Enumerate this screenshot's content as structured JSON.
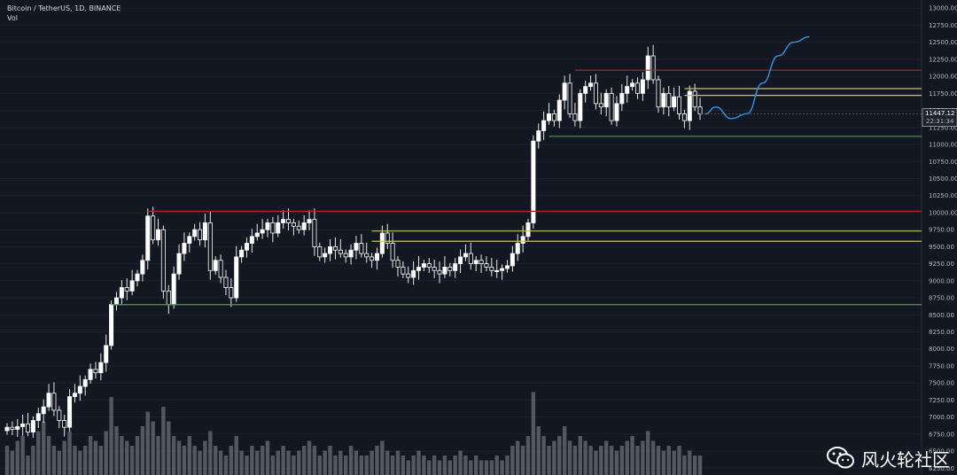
{
  "header": {
    "title": "Bitcoin / TetherUS, 1D, BINANCE",
    "sub": "Vol"
  },
  "price_tag": {
    "last_price": "11447.12",
    "countdown": "22:31:34"
  },
  "watermark": {
    "text": "风火轮社区",
    "icon": "wechat-icon"
  },
  "colors": {
    "background": "#131722",
    "candle_body": "#ffffff",
    "volume": "#6a6d78",
    "resistance": "#b2262a",
    "band": "#c9c26a",
    "support": "#33a852",
    "projection": "#2f8fd8",
    "grid": "#1e2230",
    "axis_text": "#b2b5be"
  },
  "chart_data": {
    "type": "candlestick",
    "title": "Bitcoin / TetherUS, 1D, BINANCE",
    "ylim": [
      6250,
      13000
    ],
    "y_ticks": [
      13000,
      12750,
      12500,
      12250,
      12000,
      11750,
      11500,
      11250,
      11000,
      10750,
      10500,
      10250,
      10000,
      9750,
      9500,
      9250,
      9000,
      8750,
      8500,
      8250,
      8000,
      7750,
      7500,
      7250,
      7000,
      6750,
      6500,
      6250
    ],
    "y_tick_labels": [
      "13000.00",
      "12750.00",
      "12500.00",
      "12250.00",
      "12000.00",
      "11750.00",
      "11500.00",
      "11250.00",
      "11000.00",
      "10750.00",
      "10500.00",
      "10250.00",
      "10000.00",
      "9750.00",
      "9500.00",
      "9250.00",
      "9000.00",
      "8750.00",
      "8500.00",
      "8250.00",
      "8000.00",
      "7750.00",
      "7500.00",
      "7250.00",
      "7000.00",
      "6750.00",
      "6500.00",
      "6250.00"
    ],
    "closes": [
      6850,
      6820,
      6860,
      6900,
      6780,
      6950,
      7050,
      7150,
      7350,
      7100,
      6950,
      6850,
      7300,
      7350,
      7450,
      7550,
      7700,
      7650,
      7800,
      8050,
      8650,
      8750,
      8900,
      8850,
      9000,
      9100,
      9300,
      9950,
      9600,
      9750,
      8850,
      8650,
      9100,
      9400,
      9550,
      9650,
      9750,
      9600,
      9850,
      9150,
      9300,
      9050,
      8900,
      8750,
      9350,
      9450,
      9550,
      9650,
      9700,
      9750,
      9850,
      9700,
      9850,
      9900,
      9850,
      9800,
      9750,
      9850,
      9900,
      9500,
      9350,
      9400,
      9500,
      9450,
      9400,
      9350,
      9450,
      9550,
      9400,
      9350,
      9300,
      9400,
      9700,
      9550,
      9300,
      9200,
      9100,
      9050,
      9150,
      9200,
      9250,
      9200,
      9150,
      9100,
      9200,
      9150,
      9250,
      9350,
      9400,
      9250,
      9300,
      9250,
      9200,
      9150,
      9150,
      9180,
      9220,
      9400,
      9550,
      9650,
      9850,
      11050,
      11200,
      11350,
      11450,
      11350,
      11650,
      11900,
      11450,
      11350,
      11750,
      11850,
      11900,
      11600,
      11550,
      11750,
      11350,
      11600,
      11750,
      11850,
      11900,
      11750,
      11950,
      12300,
      11950,
      11550,
      11750,
      11550,
      11700,
      11450,
      11350,
      11780,
      11550,
      11447
    ],
    "opens": [
      6800,
      6850,
      6820,
      6860,
      6900,
      6780,
      6950,
      7050,
      7150,
      7350,
      7100,
      6950,
      6850,
      7300,
      7350,
      7450,
      7550,
      7700,
      7650,
      7800,
      8050,
      8650,
      8750,
      8900,
      8850,
      9000,
      9100,
      9300,
      9950,
      9600,
      9750,
      8850,
      8650,
      9100,
      9400,
      9550,
      9650,
      9750,
      9600,
      9850,
      9150,
      9300,
      9050,
      8900,
      8750,
      9350,
      9450,
      9550,
      9650,
      9700,
      9750,
      9850,
      9700,
      9850,
      9900,
      9850,
      9800,
      9750,
      9850,
      9900,
      9500,
      9350,
      9400,
      9500,
      9450,
      9400,
      9350,
      9450,
      9550,
      9400,
      9350,
      9300,
      9400,
      9700,
      9550,
      9300,
      9200,
      9100,
      9050,
      9150,
      9200,
      9250,
      9200,
      9150,
      9100,
      9200,
      9150,
      9250,
      9350,
      9400,
      9250,
      9300,
      9250,
      9200,
      9150,
      9150,
      9180,
      9220,
      9400,
      9550,
      9650,
      9850,
      11050,
      11200,
      11350,
      11450,
      11350,
      11650,
      11900,
      11450,
      11350,
      11750,
      11850,
      11900,
      11600,
      11550,
      11750,
      11350,
      11600,
      11750,
      11850,
      11900,
      11750,
      11950,
      12300,
      11950,
      11550,
      11750,
      11550,
      11700,
      11450,
      11350,
      11780,
      11550
    ],
    "volume_pct": [
      0.3,
      0.25,
      0.35,
      0.4,
      0.2,
      0.3,
      0.45,
      0.55,
      0.4,
      0.3,
      0.25,
      0.35,
      0.45,
      0.3,
      0.25,
      0.3,
      0.4,
      0.35,
      0.3,
      0.45,
      0.8,
      0.5,
      0.4,
      0.35,
      0.3,
      0.4,
      0.5,
      0.65,
      0.55,
      0.4,
      0.7,
      0.55,
      0.4,
      0.35,
      0.3,
      0.4,
      0.3,
      0.25,
      0.35,
      0.45,
      0.3,
      0.25,
      0.2,
      0.3,
      0.4,
      0.25,
      0.2,
      0.3,
      0.25,
      0.3,
      0.35,
      0.2,
      0.25,
      0.3,
      0.25,
      0.2,
      0.25,
      0.3,
      0.35,
      0.3,
      0.2,
      0.25,
      0.3,
      0.2,
      0.25,
      0.2,
      0.3,
      0.25,
      0.2,
      0.2,
      0.25,
      0.3,
      0.35,
      0.25,
      0.2,
      0.25,
      0.2,
      0.15,
      0.2,
      0.25,
      0.2,
      0.15,
      0.2,
      0.15,
      0.2,
      0.15,
      0.2,
      0.25,
      0.2,
      0.15,
      0.2,
      0.15,
      0.15,
      0.15,
      0.2,
      0.15,
      0.2,
      0.3,
      0.35,
      0.3,
      0.4,
      0.85,
      0.5,
      0.4,
      0.3,
      0.35,
      0.4,
      0.5,
      0.35,
      0.3,
      0.4,
      0.35,
      0.3,
      0.25,
      0.3,
      0.35,
      0.3,
      0.25,
      0.3,
      0.35,
      0.4,
      0.3,
      0.35,
      0.45,
      0.35,
      0.3,
      0.25,
      0.3,
      0.25,
      0.3,
      0.2,
      0.25,
      0.2,
      0.2
    ],
    "horizontal_levels": [
      {
        "price": 12090,
        "color": "resistance",
        "from_index": 109
      },
      {
        "price": 11820,
        "color": "band",
        "from_index": 130
      },
      {
        "price": 11720,
        "color": "band",
        "from_index": 130
      },
      {
        "price": 11120,
        "color": "support",
        "from_index": 104
      },
      {
        "price": 10020,
        "color": "resistance",
        "from_index": 27
      },
      {
        "price": 9730,
        "color": "band",
        "from_index": 70
      },
      {
        "price": 9580,
        "color": "band",
        "from_index": 70
      },
      {
        "price": 8650,
        "color": "support",
        "from_index": 20
      }
    ],
    "projection": [
      [
        134,
        11447
      ],
      [
        136,
        11550
      ],
      [
        139,
        11380
      ],
      [
        142,
        11450
      ],
      [
        145,
        11900
      ],
      [
        148,
        12300
      ],
      [
        151,
        12500
      ],
      [
        154,
        12580
      ]
    ]
  }
}
